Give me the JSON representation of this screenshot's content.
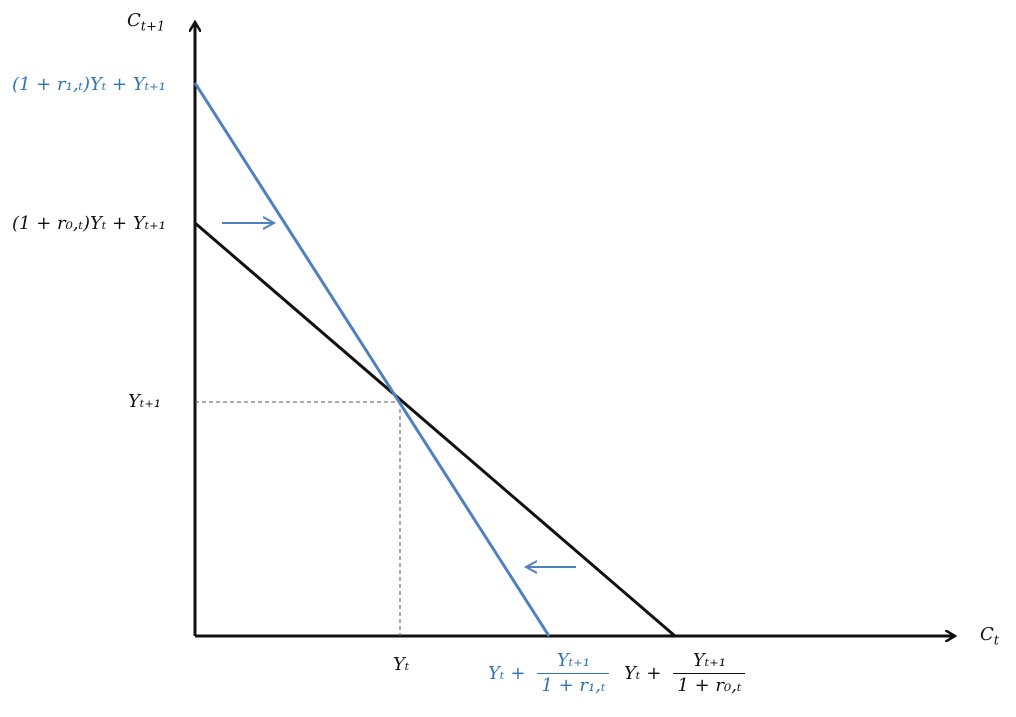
{
  "axes": {
    "y_label": "C",
    "y_sub": "t+1",
    "x_label": "C",
    "x_sub": "t"
  },
  "y_ticks": {
    "blue_intercept": "(1 + r₁,ₜ)Yₜ + Yₜ₊₁",
    "black_intercept": "(1 + r₀,ₜ)Yₜ + Yₜ₊₁",
    "endowment": "Yₜ₊₁"
  },
  "x_ticks": {
    "endowment": "Yₜ",
    "blue_intercept": {
      "lead": "Yₜ",
      "plus": "+",
      "num": "Yₜ₊₁",
      "den": "1 + r₁,ₜ"
    },
    "black_intercept": {
      "lead": "Yₜ",
      "plus": "+",
      "num": "Yₜ₊₁",
      "den": "1 + r₀,ₜ"
    }
  },
  "colors": {
    "black": "#111111",
    "blue": "#2e75b6",
    "blue_line": "#4f81bd",
    "dashed": "#555555"
  },
  "arrows": {
    "upper_direction": "right",
    "lower_direction": "left"
  }
}
